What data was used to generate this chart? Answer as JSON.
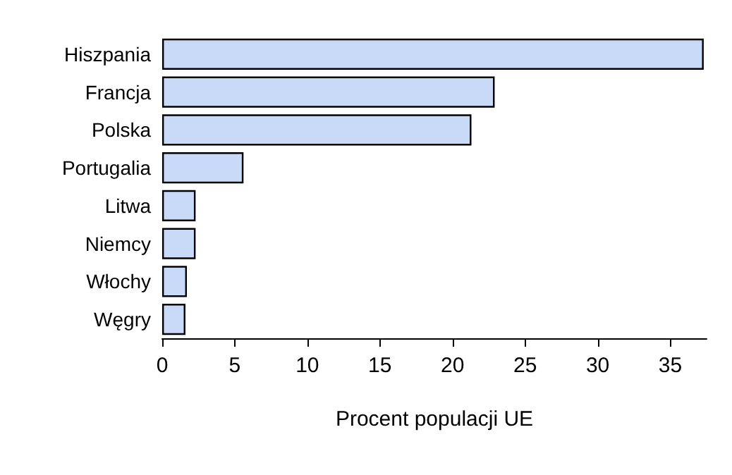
{
  "chart_data": {
    "type": "bar",
    "orientation": "horizontal",
    "xlabel": "Procent populacji UE",
    "categories": [
      "Hiszpania",
      "Francja",
      "Polska",
      "Portugalia",
      "Litwa",
      "Niemcy",
      "Włochy",
      "Węgry"
    ],
    "values": [
      37.3,
      22.9,
      21.3,
      5.6,
      2.3,
      2.3,
      1.7,
      1.6
    ],
    "color": "#c9daf8",
    "xlim": [
      0,
      37.5
    ],
    "xticks": [
      0,
      5,
      10,
      15,
      20,
      25,
      30,
      35
    ],
    "grid": false
  }
}
